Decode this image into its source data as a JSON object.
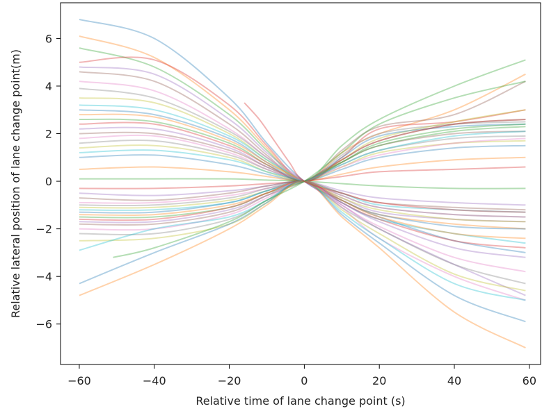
{
  "chart_data": {
    "type": "line",
    "title": "",
    "xlabel": "Relative time of lane change point (s)",
    "ylabel": "Relative lateral position of lane change point(m)",
    "xlim": [
      -65,
      63
    ],
    "ylim": [
      -7.7,
      7.5
    ],
    "xticks": [
      -60,
      -40,
      -20,
      0,
      20,
      40,
      60
    ],
    "xtick_labels": [
      "−60",
      "−40",
      "−20",
      "0",
      "20",
      "40",
      "60"
    ],
    "yticks": [
      -6,
      -4,
      -2,
      0,
      2,
      4,
      6
    ],
    "ytick_labels": [
      "−6",
      "−4",
      "−2",
      "0",
      "2",
      "4",
      "6"
    ],
    "grid": false,
    "legend": "none",
    "line_alpha": 0.35,
    "palette": [
      "#1f77b4",
      "#ff7f0e",
      "#2ca02c",
      "#d62728",
      "#9467bd",
      "#8c564b",
      "#e377c2",
      "#7f7f7f",
      "#bcbd22",
      "#17becf"
    ],
    "series_note_count": 400,
    "series": [
      {
        "x": [
          -60,
          -40,
          -20,
          -10,
          0,
          10,
          20,
          40,
          59
        ],
        "y": [
          6.8,
          6.0,
          3.5,
          1.6,
          0,
          -0.8,
          -1.5,
          -2.5,
          -3.0
        ]
      },
      {
        "x": [
          -60,
          -40,
          -20,
          -10,
          0,
          10,
          20,
          40,
          59
        ],
        "y": [
          6.1,
          5.2,
          3.0,
          1.4,
          0,
          1.2,
          2.0,
          3.0,
          4.5
        ]
      },
      {
        "x": [
          -60,
          -40,
          -20,
          -10,
          0,
          10,
          20,
          40,
          59
        ],
        "y": [
          5.6,
          4.8,
          2.8,
          1.3,
          0,
          1.5,
          2.6,
          4.0,
          5.1
        ]
      },
      {
        "x": [
          -60,
          -40,
          -20,
          -10,
          0,
          10,
          20,
          40,
          59
        ],
        "y": [
          5.0,
          5.1,
          3.2,
          1.5,
          0,
          1.0,
          2.2,
          2.5,
          3.0
        ]
      },
      {
        "x": [
          -60,
          -40,
          -20,
          -10,
          0,
          10,
          20,
          40,
          59
        ],
        "y": [
          4.8,
          4.5,
          2.6,
          1.2,
          0,
          -1.0,
          -2.0,
          -3.5,
          -4.8
        ]
      },
      {
        "x": [
          -60,
          -40,
          -20,
          -10,
          0,
          10,
          20,
          40,
          59
        ],
        "y": [
          4.6,
          4.2,
          2.4,
          1.1,
          0,
          1.3,
          2.3,
          2.8,
          4.2
        ]
      },
      {
        "x": [
          -60,
          -40,
          -20,
          -10,
          0,
          10,
          20,
          40,
          59
        ],
        "y": [
          4.2,
          3.8,
          2.2,
          1.0,
          0,
          -1.1,
          -2.4,
          -4.0,
          -5.0
        ]
      },
      {
        "x": [
          -60,
          -40,
          -20,
          -10,
          0,
          10,
          20,
          40,
          59
        ],
        "y": [
          3.9,
          3.5,
          2.1,
          1.0,
          0,
          1.1,
          2.0,
          2.4,
          2.5
        ]
      },
      {
        "x": [
          -60,
          -40,
          -20,
          -10,
          0,
          10,
          20,
          40,
          59
        ],
        "y": [
          3.5,
          3.3,
          2.0,
          0.9,
          0,
          0.9,
          1.8,
          2.5,
          3.0
        ]
      },
      {
        "x": [
          -60,
          -40,
          -20,
          -10,
          0,
          10,
          20,
          40,
          59
        ],
        "y": [
          3.2,
          3.0,
          1.9,
          0.9,
          0,
          -0.9,
          -1.6,
          -2.2,
          -2.6
        ]
      },
      {
        "x": [
          -60,
          -40,
          -20,
          -10,
          0,
          10,
          20,
          40,
          59
        ],
        "y": [
          3.0,
          2.8,
          1.8,
          0.8,
          0,
          1.0,
          1.9,
          2.3,
          2.4
        ]
      },
      {
        "x": [
          -60,
          -40,
          -20,
          -10,
          0,
          10,
          20,
          40,
          59
        ],
        "y": [
          2.8,
          2.7,
          1.7,
          0.8,
          0,
          -0.8,
          -1.4,
          -1.8,
          -2.0
        ]
      },
      {
        "x": [
          -60,
          -40,
          -20,
          -10,
          0,
          10,
          20,
          40,
          59
        ],
        "y": [
          2.6,
          2.5,
          1.6,
          0.7,
          0,
          0.8,
          1.6,
          2.2,
          2.4
        ]
      },
      {
        "x": [
          -60,
          -40,
          -20,
          -10,
          0,
          10,
          20,
          40,
          59
        ],
        "y": [
          2.4,
          2.4,
          1.5,
          0.7,
          0,
          0.9,
          1.7,
          2.4,
          2.6
        ]
      },
      {
        "x": [
          -60,
          -40,
          -20,
          -10,
          0,
          10,
          20,
          40,
          59
        ],
        "y": [
          2.2,
          2.2,
          1.4,
          0.6,
          0,
          -0.7,
          -1.3,
          -1.6,
          -1.7
        ]
      },
      {
        "x": [
          -60,
          -40,
          -20,
          -10,
          0,
          10,
          20,
          40,
          59
        ],
        "y": [
          2.0,
          2.0,
          1.3,
          0.6,
          0,
          0.8,
          1.5,
          2.0,
          2.1
        ]
      },
      {
        "x": [
          -60,
          -40,
          -20,
          -10,
          0,
          10,
          20,
          40,
          59
        ],
        "y": [
          1.8,
          1.9,
          1.2,
          0.5,
          0,
          -0.6,
          -1.1,
          -1.4,
          -1.5
        ]
      },
      {
        "x": [
          -60,
          -40,
          -20,
          -10,
          0,
          10,
          20,
          40,
          59
        ],
        "y": [
          1.6,
          1.7,
          1.1,
          0.5,
          0,
          0.7,
          1.3,
          1.8,
          1.9
        ]
      },
      {
        "x": [
          -60,
          -40,
          -20,
          -10,
          0,
          10,
          20,
          40,
          59
        ],
        "y": [
          1.4,
          1.5,
          1.0,
          0.4,
          0,
          0.6,
          1.2,
          1.6,
          1.7
        ]
      },
      {
        "x": [
          -60,
          -40,
          -20,
          -10,
          0,
          10,
          20,
          40,
          59
        ],
        "y": [
          1.2,
          1.3,
          0.9,
          0.4,
          0,
          -0.5,
          -1.0,
          -1.2,
          -1.3
        ]
      },
      {
        "x": [
          -60,
          -40,
          -20,
          -10,
          0,
          10,
          20,
          40,
          59
        ],
        "y": [
          1.0,
          1.1,
          0.7,
          0.3,
          0,
          0.5,
          1.0,
          1.4,
          1.5
        ]
      },
      {
        "x": [
          -60,
          -40,
          -20,
          -10,
          0,
          10,
          20,
          40,
          59
        ],
        "y": [
          0.5,
          0.6,
          0.4,
          0.2,
          0,
          0.3,
          0.6,
          0.9,
          1.0
        ]
      },
      {
        "x": [
          -60,
          -40,
          -20,
          -10,
          0,
          10,
          20,
          40,
          59
        ],
        "y": [
          0.1,
          0.1,
          0.1,
          0.05,
          0,
          -0.1,
          -0.2,
          -0.3,
          -0.3
        ]
      },
      {
        "x": [
          -60,
          -40,
          -20,
          -10,
          0,
          10,
          20,
          40,
          59
        ],
        "y": [
          -0.3,
          -0.3,
          -0.2,
          -0.1,
          0,
          0.2,
          0.4,
          0.5,
          0.6
        ]
      },
      {
        "x": [
          -60,
          -40,
          -20,
          -10,
          0,
          10,
          20,
          40,
          59
        ],
        "y": [
          -0.5,
          -0.6,
          -0.4,
          -0.2,
          0,
          -0.4,
          -0.7,
          -0.9,
          -1.0
        ]
      },
      {
        "x": [
          -60,
          -40,
          -20,
          -10,
          0,
          10,
          20,
          40,
          59
        ],
        "y": [
          -0.7,
          -0.8,
          -0.5,
          -0.2,
          0,
          -0.5,
          -0.9,
          -1.1,
          -1.2
        ]
      },
      {
        "x": [
          -60,
          -40,
          -20,
          -10,
          0,
          10,
          20,
          40,
          59
        ],
        "y": [
          -0.9,
          -0.9,
          -0.6,
          -0.3,
          0,
          0.6,
          1.1,
          1.6,
          1.8
        ]
      },
      {
        "x": [
          -60,
          -40,
          -20,
          -10,
          0,
          10,
          20,
          40,
          59
        ],
        "y": [
          -1.0,
          -1.0,
          -0.7,
          -0.3,
          0,
          -0.6,
          -1.1,
          -1.4,
          -1.5
        ]
      },
      {
        "x": [
          -60,
          -40,
          -20,
          -10,
          0,
          10,
          20,
          40,
          59
        ],
        "y": [
          -1.1,
          -1.1,
          -0.8,
          -0.4,
          0,
          -0.7,
          -1.2,
          -1.6,
          -1.7
        ]
      },
      {
        "x": [
          -60,
          -40,
          -20,
          -10,
          0,
          10,
          20,
          40,
          59
        ],
        "y": [
          -1.2,
          -1.2,
          -0.9,
          -0.4,
          0,
          0.7,
          1.3,
          1.9,
          2.1
        ]
      },
      {
        "x": [
          -60,
          -40,
          -20,
          -10,
          0,
          10,
          20,
          40,
          59
        ],
        "y": [
          -1.3,
          -1.3,
          -0.9,
          -0.4,
          0,
          -0.8,
          -1.4,
          -1.9,
          -2.0
        ]
      },
      {
        "x": [
          -60,
          -40,
          -20,
          -10,
          0,
          10,
          20,
          40,
          59
        ],
        "y": [
          -1.4,
          -1.4,
          -1.0,
          -0.5,
          0,
          -0.8,
          -1.5,
          -2.2,
          -2.4
        ]
      },
      {
        "x": [
          -60,
          -40,
          -20,
          -10,
          0,
          10,
          20,
          40,
          59
        ],
        "y": [
          -1.5,
          -1.5,
          -1.1,
          -0.5,
          0,
          0.8,
          1.5,
          2.1,
          2.3
        ]
      },
      {
        "x": [
          -60,
          -40,
          -20,
          -10,
          0,
          10,
          20,
          40,
          59
        ],
        "y": [
          -1.6,
          -1.6,
          -1.1,
          -0.5,
          0,
          -0.9,
          -1.6,
          -2.5,
          -2.8
        ]
      },
      {
        "x": [
          -60,
          -40,
          -20,
          -10,
          0,
          10,
          20,
          40,
          59
        ],
        "y": [
          -1.7,
          -1.7,
          -1.2,
          -0.6,
          0,
          -0.9,
          -1.7,
          -2.8,
          -3.2
        ]
      },
      {
        "x": [
          -60,
          -40,
          -20,
          -10,
          0,
          10,
          20,
          40,
          59
        ],
        "y": [
          -1.8,
          -1.8,
          -1.3,
          -0.6,
          0,
          0.9,
          1.7,
          2.4,
          2.6
        ]
      },
      {
        "x": [
          -60,
          -40,
          -20,
          -10,
          0,
          10,
          20,
          40,
          59
        ],
        "y": [
          -2.0,
          -2.0,
          -1.4,
          -0.7,
          0,
          -1.0,
          -1.9,
          -3.2,
          -3.8
        ]
      },
      {
        "x": [
          -60,
          -40,
          -20,
          -10,
          0,
          10,
          20,
          40,
          59
        ],
        "y": [
          -2.2,
          -2.2,
          -1.6,
          -0.8,
          0,
          -1.1,
          -2.0,
          -3.5,
          -4.3
        ]
      },
      {
        "x": [
          -60,
          -40,
          -20,
          -10,
          0,
          10,
          20,
          40,
          59
        ],
        "y": [
          -2.5,
          -2.4,
          -1.8,
          -0.9,
          0,
          -1.2,
          -2.2,
          -3.9,
          -4.6
        ]
      },
      {
        "x": [
          -60,
          -40,
          -20,
          -10,
          0,
          10,
          20,
          40,
          59
        ],
        "y": [
          -2.9,
          -2.0,
          -1.5,
          -0.8,
          0,
          -1.3,
          -2.4,
          -4.3,
          -5.0
        ]
      },
      {
        "x": [
          -60,
          -40,
          -20,
          -10,
          0,
          10,
          20,
          40,
          59
        ],
        "y": [
          -4.3,
          -3.0,
          -1.8,
          -0.9,
          0,
          -1.4,
          -2.6,
          -4.8,
          -5.9
        ]
      },
      {
        "x": [
          -60,
          -40,
          -20,
          -10,
          0,
          10,
          20,
          40,
          59
        ],
        "y": [
          -4.8,
          -3.5,
          -2.0,
          -1.0,
          0,
          -1.5,
          -2.8,
          -5.5,
          -7.0
        ]
      },
      {
        "x": [
          -51,
          -40,
          -20,
          -10,
          0,
          10,
          20,
          40,
          59
        ],
        "y": [
          -3.2,
          -2.8,
          -1.7,
          -0.8,
          0,
          1.2,
          2.4,
          3.5,
          4.2
        ]
      },
      {
        "x": [
          -16,
          -12,
          -8,
          -4,
          0,
          10,
          20,
          40,
          59
        ],
        "y": [
          3.3,
          2.6,
          1.7,
          0.8,
          0,
          -0.5,
          -0.9,
          -1.2,
          -1.3
        ]
      }
    ]
  }
}
